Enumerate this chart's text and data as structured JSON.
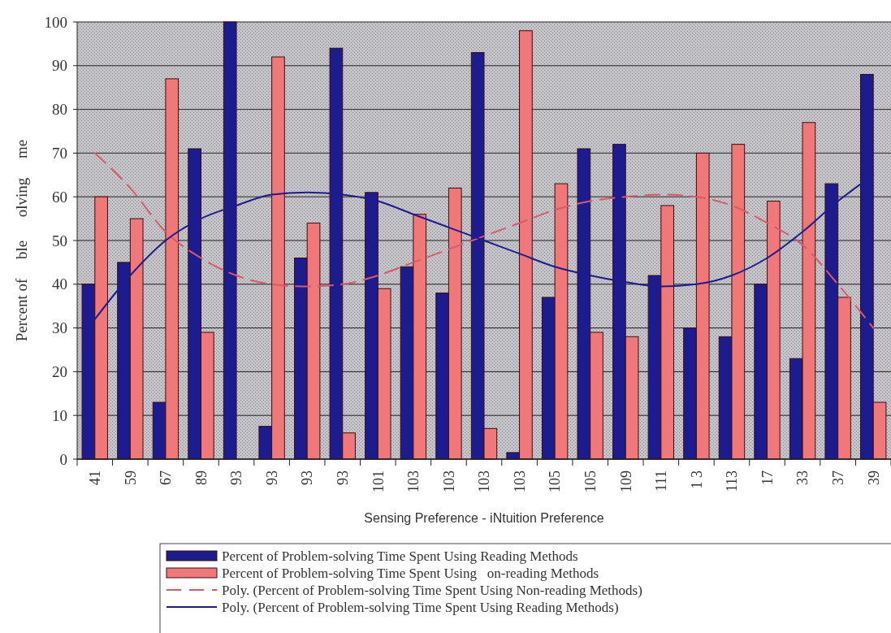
{
  "chart_data": {
    "type": "bar",
    "xlabel": "Sensing Preference - iNtuition Preference",
    "ylabel": "Percent of     ble      olving     me",
    "categories": [
      "41",
      "59",
      "67",
      "89",
      "93",
      "93",
      "93",
      "93",
      "101",
      "103",
      "103",
      "103",
      "103",
      "105",
      "105",
      "109",
      "111",
      "1 3",
      "113",
      "17",
      "33",
      "37",
      "39"
    ],
    "series": [
      {
        "name": "Percent of Problem-solving Time Spent Using Reading Methods",
        "color": "#1c1c8e",
        "values": [
          40,
          45,
          13,
          71,
          100,
          7.5,
          46,
          94,
          61,
          44,
          38,
          93,
          1.5,
          37,
          71,
          72,
          42,
          30,
          28,
          40,
          23,
          63,
          88
        ]
      },
      {
        "name": "Percent of Problem-solving Time Spent Using   on-reading Methods",
        "color": "#f07878",
        "values": [
          60,
          55,
          87,
          29,
          0,
          92,
          54,
          6,
          39,
          56,
          62,
          7,
          98,
          63,
          29,
          28,
          58,
          70,
          72,
          59,
          77,
          37,
          13
        ]
      },
      {
        "type": "line",
        "line_style": "dashed",
        "name": "Poly. (Percent of Problem-solving Time Spent Using Non-reading Methods)",
        "color": "#d85a6a",
        "values": [
          70,
          62,
          52,
          46,
          42,
          40,
          39.5,
          40,
          42,
          45,
          48,
          51,
          54,
          57,
          59,
          60,
          60.5,
          60,
          58,
          54,
          49,
          40,
          30
        ]
      },
      {
        "type": "line",
        "line_style": "solid",
        "name": "Poly. (Percent of Problem-solving Time Spent Using Reading Methods)",
        "color": "#1c1c8e",
        "values": [
          32,
          42,
          50,
          55,
          58,
          60.5,
          61,
          60.5,
          59,
          56,
          53,
          50,
          47,
          44,
          42,
          40.5,
          39.5,
          40,
          42,
          46,
          52,
          59,
          65
        ]
      }
    ],
    "ylim": [
      0,
      100
    ],
    "yticks": [
      0,
      10,
      20,
      30,
      40,
      50,
      60,
      70,
      80,
      90,
      100
    ],
    "grid": "y",
    "legend": "bottom"
  }
}
